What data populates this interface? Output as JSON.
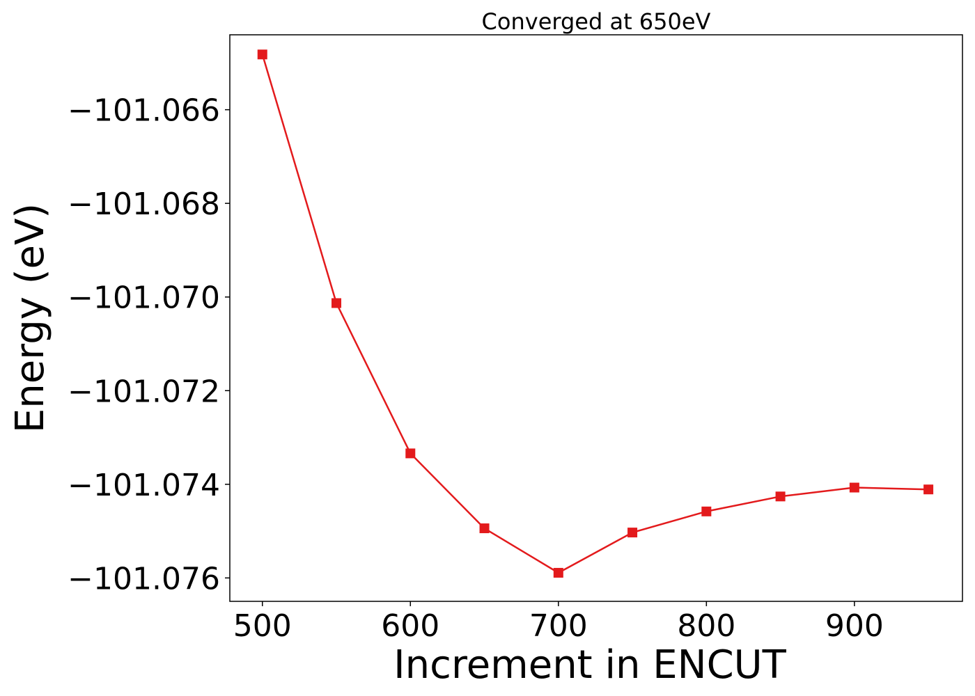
{
  "chart_data": {
    "type": "line",
    "title": "Converged at 650eV",
    "xlabel": "Increment in ENCUT",
    "ylabel": "Energy (eV)",
    "xlim": [
      478,
      973
    ],
    "ylim": [
      -101.0765,
      -101.0644
    ],
    "xticks": [
      500,
      600,
      700,
      800,
      900
    ],
    "xtick_labels": [
      "500",
      "600",
      "700",
      "800",
      "900"
    ],
    "yticks": [
      -101.066,
      -101.068,
      -101.07,
      -101.072,
      -101.074,
      -101.076
    ],
    "ytick_labels": [
      "−101.066",
      "−101.068",
      "−101.070",
      "−101.072",
      "−101.074",
      "−101.076"
    ],
    "grid": false,
    "legend": "none",
    "series": [
      {
        "color": "#e31a1c",
        "marker": "square",
        "x": [
          500,
          550,
          600,
          650,
          700,
          750,
          800,
          850,
          900,
          950
        ],
        "y": [
          -101.06482,
          -101.07013,
          -101.07334,
          -101.07494,
          -101.07589,
          -101.07503,
          -101.07458,
          -101.07426,
          -101.07407,
          -101.07411
        ]
      }
    ]
  }
}
